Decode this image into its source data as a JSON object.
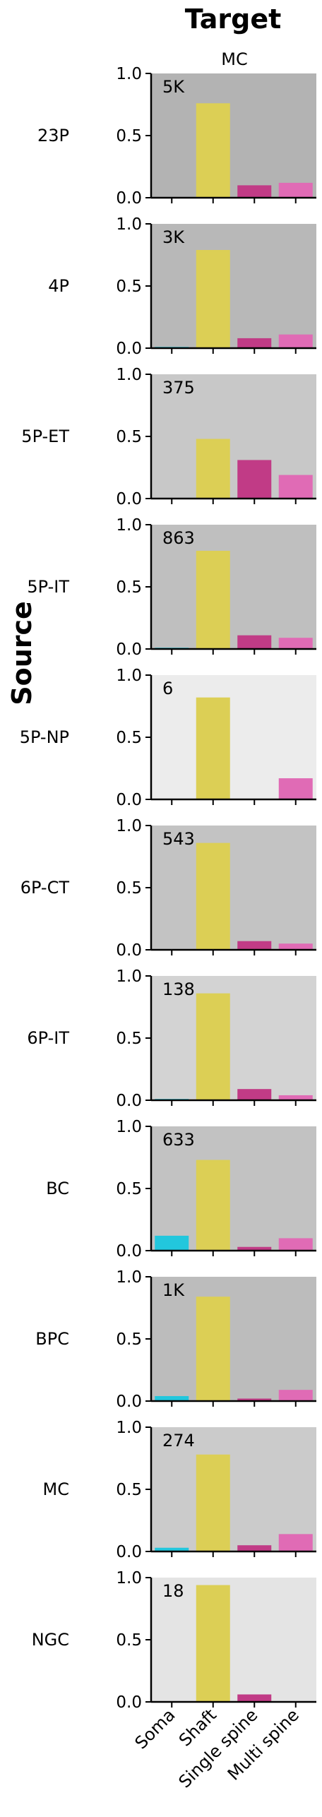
{
  "header": {
    "title": "Target",
    "column_label": "MC"
  },
  "y_axis_title": "Source",
  "chart_data": {
    "type": "bar",
    "categories": [
      "Soma",
      "Shaft",
      "Single spine",
      "Multi spine"
    ],
    "ylim": [
      0,
      1.0
    ],
    "yticks": [
      "0.0",
      "0.5",
      "1.0"
    ],
    "category_colors": [
      "#22c7dd",
      "#dccf55",
      "#c13b86",
      "#e06bb5"
    ],
    "panels": [
      {
        "source": "23P",
        "count_label": "5K",
        "background": "#b3b3b3",
        "values": [
          0.0,
          0.76,
          0.1,
          0.12
        ]
      },
      {
        "source": "4P",
        "count_label": "3K",
        "background": "#b8b8b8",
        "values": [
          0.01,
          0.79,
          0.08,
          0.11
        ]
      },
      {
        "source": "5P-ET",
        "count_label": "375",
        "background": "#c8c8c8",
        "values": [
          0.0,
          0.48,
          0.31,
          0.19
        ]
      },
      {
        "source": "5P-IT",
        "count_label": "863",
        "background": "#bfbfbf",
        "values": [
          0.01,
          0.79,
          0.11,
          0.09
        ]
      },
      {
        "source": "5P-NP",
        "count_label": "6",
        "background": "#ececec",
        "values": [
          0.0,
          0.82,
          0.0,
          0.17
        ]
      },
      {
        "source": "6P-CT",
        "count_label": "543",
        "background": "#c3c3c3",
        "values": [
          0.0,
          0.86,
          0.07,
          0.05
        ]
      },
      {
        "source": "6P-IT",
        "count_label": "138",
        "background": "#d3d3d3",
        "values": [
          0.01,
          0.86,
          0.09,
          0.04
        ]
      },
      {
        "source": "BC",
        "count_label": "633",
        "background": "#c2c2c2",
        "values": [
          0.12,
          0.73,
          0.03,
          0.1
        ]
      },
      {
        "source": "BPC",
        "count_label": "1K",
        "background": "#bcbcbc",
        "values": [
          0.04,
          0.84,
          0.02,
          0.09
        ]
      },
      {
        "source": "MC",
        "count_label": "274",
        "background": "#cbcbcb",
        "values": [
          0.03,
          0.78,
          0.05,
          0.14
        ]
      },
      {
        "source": "NGC",
        "count_label": "18",
        "background": "#e4e4e4",
        "values": [
          0.0,
          0.94,
          0.06,
          0.0
        ]
      }
    ]
  }
}
